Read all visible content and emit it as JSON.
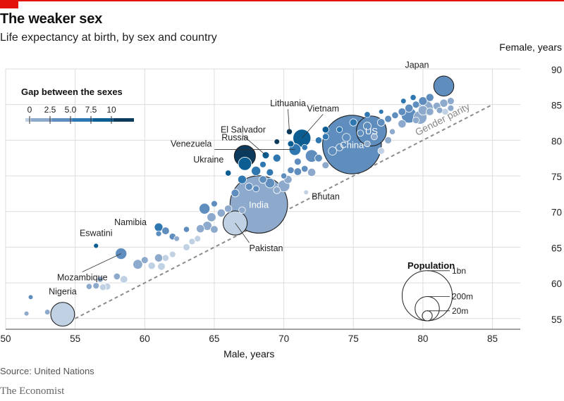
{
  "header": {
    "title": "The weaker sex",
    "subtitle": "Life expectancy at birth, by sex and country"
  },
  "footer": {
    "source": "Source: United Nations",
    "brand": "The Economist"
  },
  "colors": {
    "gap_scale": [
      "#c0d1e3",
      "#8daacc",
      "#5f8ebe",
      "#2f77b0",
      "#0b5d92",
      "#0b3a5c"
    ],
    "parity_line": "#8c8c8c",
    "grid": "#dddddd",
    "accent": "#e3120b"
  },
  "chart_data": {
    "type": "scatter",
    "title": "The weaker sex",
    "subtitle": "Life expectancy at birth, by sex and country",
    "xlabel": "Male, years",
    "ylabel": "Female, years",
    "xlim": [
      50,
      87
    ],
    "ylim": [
      53.5,
      90
    ],
    "xticks": [
      50,
      55,
      60,
      65,
      70,
      75,
      80,
      85
    ],
    "yticks": [
      55,
      60,
      65,
      70,
      75,
      80,
      85,
      90
    ],
    "grid": true,
    "reference_line": {
      "label": "Gender parity",
      "from": [
        55,
        55
      ],
      "to": [
        85,
        85
      ]
    },
    "legend_gap": {
      "title": "Gap between the sexes",
      "ticks": [
        "0",
        "2.5",
        "5.0",
        "7.5",
        "10"
      ]
    },
    "legend_size": {
      "title": "Population",
      "entries": [
        {
          "label": "1bn",
          "pop_m": 1000
        },
        {
          "label": "200m",
          "pop_m": 200
        },
        {
          "label": "20m",
          "pop_m": 20
        }
      ]
    },
    "labeled": [
      {
        "name": "Japan",
        "male": 81.5,
        "female": 87.6,
        "pop_m": 127
      },
      {
        "name": "China",
        "male": 74.9,
        "female": 79.4,
        "pop_m": 1400,
        "label_inside": true
      },
      {
        "name": "US",
        "male": 76.3,
        "female": 81.3,
        "pop_m": 325,
        "label_inside": true
      },
      {
        "name": "India",
        "male": 68.2,
        "female": 71.0,
        "pop_m": 1340,
        "label_inside": true
      },
      {
        "name": "Vietnam",
        "male": 71.3,
        "female": 80.3,
        "pop_m": 95
      },
      {
        "name": "Lithuania",
        "male": 70.4,
        "female": 81.2,
        "pop_m": 3
      },
      {
        "name": "El Salvador",
        "male": 68.7,
        "female": 77.9,
        "pop_m": 6
      },
      {
        "name": "Russia",
        "male": 67.2,
        "female": 77.8,
        "pop_m": 144
      },
      {
        "name": "Ukraine",
        "male": 67.2,
        "female": 76.7,
        "pop_m": 44
      },
      {
        "name": "Venezuela",
        "male": 70.8,
        "female": 78.7,
        "pop_m": 32
      },
      {
        "name": "Bhutan",
        "male": 71.6,
        "female": 72.7,
        "pop_m": 1
      },
      {
        "name": "Pakistan",
        "male": 66.5,
        "female": 68.4,
        "pop_m": 197
      },
      {
        "name": "Namibia",
        "male": 61.0,
        "female": 66.9,
        "pop_m": 2.5
      },
      {
        "name": "Eswatini",
        "male": 56.5,
        "female": 65.2,
        "pop_m": 1.1
      },
      {
        "name": "Mozambique",
        "male": 58.3,
        "female": 64.1,
        "pop_m": 29
      },
      {
        "name": "Nigeria",
        "male": 54.1,
        "female": 55.6,
        "pop_m": 191
      }
    ],
    "others": [
      [
        51.5,
        55.7,
        1
      ],
      [
        51.8,
        58.0,
        1
      ],
      [
        53.0,
        55.9,
        2
      ],
      [
        56.0,
        59.5,
        3
      ],
      [
        56.5,
        59.6,
        4
      ],
      [
        56.8,
        60.5,
        3
      ],
      [
        57.0,
        59.4,
        5
      ],
      [
        57.3,
        59.5,
        6
      ],
      [
        58.0,
        60.9,
        5
      ],
      [
        58.5,
        60.5,
        8
      ],
      [
        59.5,
        62.6,
        18
      ],
      [
        60.0,
        63.2,
        6
      ],
      [
        60.5,
        62.4,
        7
      ],
      [
        61.0,
        63.5,
        10
      ],
      [
        61.2,
        62.3,
        8
      ],
      [
        61.5,
        63.5,
        5
      ],
      [
        62.0,
        64.0,
        4
      ],
      [
        61.0,
        67.8,
        12
      ],
      [
        61.5,
        67.3,
        8
      ],
      [
        62.0,
        66.5,
        5
      ],
      [
        62.3,
        66.2,
        2
      ],
      [
        63.0,
        65.0,
        6
      ],
      [
        63.4,
        65.8,
        4
      ],
      [
        63.0,
        67.5,
        3
      ],
      [
        63.8,
        66.2,
        4
      ],
      [
        64.0,
        67.6,
        10
      ],
      [
        64.5,
        68.0,
        15
      ],
      [
        65.0,
        67.5,
        8
      ],
      [
        64.3,
        70.4,
        25
      ],
      [
        65.0,
        71.1,
        4
      ],
      [
        64.8,
        69.2,
        14
      ],
      [
        65.5,
        69.8,
        10
      ],
      [
        66.0,
        70.4,
        7
      ],
      [
        66.5,
        72.6,
        9
      ],
      [
        67.0,
        70.2,
        5
      ],
      [
        66.0,
        75.4,
        3
      ],
      [
        67.5,
        73.5,
        7
      ],
      [
        67.0,
        74.5,
        12
      ],
      [
        68.0,
        73.2,
        4
      ],
      [
        68.5,
        74.5,
        8
      ],
      [
        69.0,
        74.0,
        18
      ],
      [
        69.5,
        73.0,
        6
      ],
      [
        70.0,
        73.6,
        33
      ],
      [
        70.3,
        74.5,
        10
      ],
      [
        71.0,
        75.6,
        8
      ],
      [
        70.5,
        75.8,
        5
      ],
      [
        68.0,
        75.7,
        16
      ],
      [
        68.5,
        76.6,
        4
      ],
      [
        69.0,
        75.5,
        6
      ],
      [
        69.5,
        77.5,
        9
      ],
      [
        70.0,
        75.0,
        3
      ],
      [
        71.0,
        77.0,
        6
      ],
      [
        71.5,
        76.0,
        5
      ],
      [
        72.0,
        75.5,
        10
      ],
      [
        72.5,
        77.5,
        8
      ],
      [
        73.0,
        76.5,
        6
      ],
      [
        72.0,
        77.8,
        38
      ],
      [
        73.5,
        78.5,
        11
      ],
      [
        74.0,
        79.0,
        6
      ],
      [
        72.5,
        80.0,
        5
      ],
      [
        73.0,
        80.5,
        4
      ],
      [
        74.5,
        80.4,
        10
      ],
      [
        71.5,
        79.0,
        3
      ],
      [
        70.5,
        79.5,
        4
      ],
      [
        69.5,
        79.8,
        2
      ],
      [
        73.0,
        81.5,
        5
      ],
      [
        75.0,
        82.5,
        7
      ],
      [
        76.0,
        82.0,
        9
      ],
      [
        77.0,
        82.5,
        8
      ],
      [
        77.5,
        83.0,
        6
      ],
      [
        78.0,
        83.5,
        5
      ],
      [
        78.5,
        84.0,
        8
      ],
      [
        79.0,
        84.5,
        10
      ],
      [
        79.5,
        85.0,
        6
      ],
      [
        80.0,
        85.5,
        12
      ],
      [
        80.5,
        86.0,
        9
      ],
      [
        81.0,
        84.8,
        8
      ],
      [
        81.5,
        85.2,
        10
      ],
      [
        82.0,
        85.5,
        6
      ],
      [
        80.2,
        84.5,
        60
      ],
      [
        79.0,
        83.5,
        66
      ],
      [
        79.8,
        83.2,
        46
      ],
      [
        79.5,
        82.8,
        5
      ],
      [
        80.0,
        84.2,
        17
      ],
      [
        80.5,
        84.0,
        8
      ],
      [
        81.2,
        84.2,
        4
      ],
      [
        78.5,
        82.3,
        10
      ],
      [
        77.8,
        81.2,
        3
      ],
      [
        76.5,
        80.5,
        4
      ],
      [
        76.0,
        79.5,
        3
      ],
      [
        77.5,
        80.0,
        6
      ],
      [
        77.0,
        78.5,
        5
      ],
      [
        75.5,
        81.0,
        4
      ],
      [
        74.0,
        81.5,
        3
      ],
      [
        81.6,
        84.0,
        5
      ],
      [
        82.0,
        84.5,
        4
      ],
      [
        79.3,
        86.0,
        3
      ],
      [
        78.6,
        85.5,
        2
      ],
      [
        77.0,
        84.0,
        1
      ],
      [
        76.0,
        83.6,
        3
      ]
    ]
  }
}
